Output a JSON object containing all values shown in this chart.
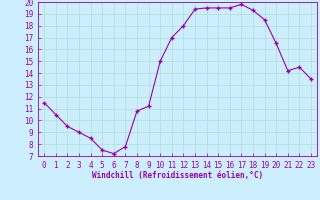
{
  "hours": [
    0,
    1,
    2,
    3,
    4,
    5,
    6,
    7,
    8,
    9,
    10,
    11,
    12,
    13,
    14,
    15,
    16,
    17,
    18,
    19,
    20,
    21,
    22,
    23
  ],
  "temps": [
    11.5,
    10.5,
    9.5,
    9.0,
    8.5,
    7.5,
    7.2,
    7.8,
    10.8,
    11.2,
    15.0,
    17.0,
    18.0,
    19.4,
    19.5,
    19.5,
    19.5,
    19.8,
    19.3,
    18.5,
    16.5,
    14.2,
    14.5,
    13.5
  ],
  "line_color": "#9900aa",
  "marker_color": "#9900aa",
  "bg_color": "#cceeff",
  "grid_color": "#aaddcc",
  "axis_color": "#9900aa",
  "xlabel": "Windchill (Refroidissement éolien,°C)",
  "ylim": [
    7,
    20
  ],
  "xlim": [
    -0.5,
    23.5
  ],
  "yticks": [
    7,
    8,
    9,
    10,
    11,
    12,
    13,
    14,
    15,
    16,
    17,
    18,
    19,
    20
  ],
  "xticks": [
    0,
    1,
    2,
    3,
    4,
    5,
    6,
    7,
    8,
    9,
    10,
    11,
    12,
    13,
    14,
    15,
    16,
    17,
    18,
    19,
    20,
    21,
    22,
    23
  ],
  "tick_fontsize": 5.5,
  "xlabel_fontsize": 5.5
}
